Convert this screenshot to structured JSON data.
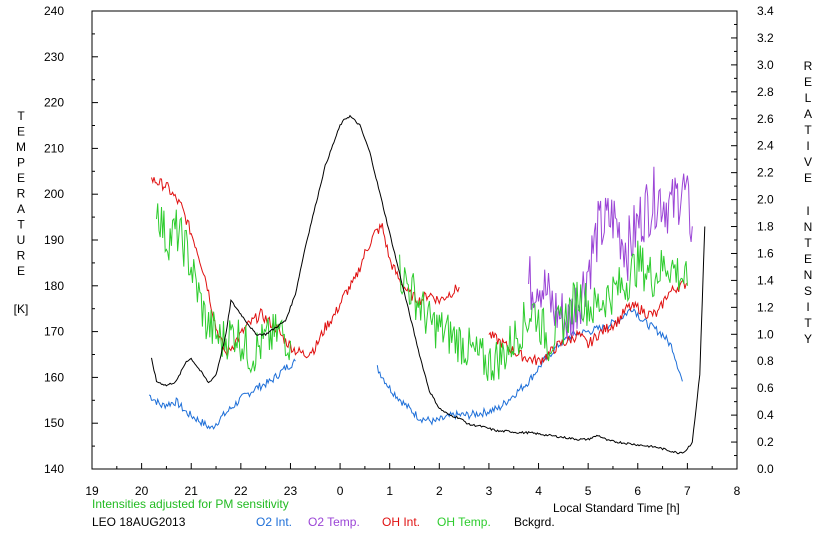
{
  "chart_data": {
    "type": "line",
    "ylabel_letters": [
      "T",
      "E",
      "M",
      "P",
      "E",
      "R",
      "A",
      "T",
      "U",
      "R",
      "E"
    ],
    "ylabel_unit": "[K]",
    "y2label_line1_letters": [
      "R",
      "E",
      "L",
      "A",
      "T",
      "I",
      "V",
      "E"
    ],
    "y2label_line2_letters": [
      "I",
      "N",
      "T",
      "E",
      "N",
      "S",
      "I",
      "T",
      "Y"
    ],
    "xlabel": "Local Standard Time [h]",
    "note": "Intensities adjusted for PM sensitivity",
    "station": "LEO 18AUG2013",
    "x_range": [
      19,
      32
    ],
    "x_tick_labels": [
      "19",
      "20",
      "21",
      "22",
      "23",
      "0",
      "1",
      "2",
      "3",
      "4",
      "5",
      "6",
      "7",
      "8"
    ],
    "ylim": [
      140,
      240
    ],
    "y_ticks": [
      140,
      150,
      160,
      170,
      180,
      190,
      200,
      210,
      220,
      230,
      240
    ],
    "y2lim": [
      0.0,
      3.4
    ],
    "y2_tick_labels": [
      "0.0",
      "0.2",
      "0.4",
      "0.6",
      "0.8",
      "1.0",
      "1.2",
      "1.4",
      "1.6",
      "1.8",
      "2.0",
      "2.2",
      "2.4",
      "2.6",
      "2.8",
      "3.0",
      "3.2",
      "3.4"
    ],
    "grid": false,
    "legend_placement": "bottom",
    "series": [
      {
        "name": "O2 Int.",
        "axis": "right",
        "color": "#1e6fd8",
        "noise": 0.03,
        "segments": [
          [
            [
              20.15,
              0.55
            ],
            [
              20.4,
              0.47
            ],
            [
              20.7,
              0.5
            ],
            [
              20.9,
              0.42
            ],
            [
              21.2,
              0.35
            ],
            [
              21.4,
              0.3
            ],
            [
              21.6,
              0.38
            ],
            [
              21.8,
              0.45
            ],
            [
              22.0,
              0.52
            ],
            [
              22.3,
              0.6
            ],
            [
              22.6,
              0.65
            ],
            [
              22.9,
              0.75
            ],
            [
              23.1,
              0.8
            ]
          ],
          [
            [
              24.75,
              0.75
            ],
            [
              25.0,
              0.6
            ],
            [
              25.3,
              0.48
            ],
            [
              25.6,
              0.38
            ],
            [
              25.9,
              0.35
            ],
            [
              26.3,
              0.4
            ],
            [
              26.6,
              0.4
            ],
            [
              26.9,
              0.42
            ],
            [
              27.2,
              0.45
            ],
            [
              27.5,
              0.55
            ],
            [
              27.8,
              0.65
            ],
            [
              28.1,
              0.8
            ],
            [
              28.4,
              0.92
            ],
            [
              28.7,
              1.0
            ],
            [
              29.0,
              1.02
            ],
            [
              29.3,
              1.05
            ],
            [
              29.6,
              1.1
            ],
            [
              29.9,
              1.2
            ],
            [
              30.1,
              1.1
            ],
            [
              30.3,
              1.05
            ],
            [
              30.5,
              1.0
            ],
            [
              30.7,
              0.9
            ],
            [
              30.9,
              0.65
            ]
          ]
        ]
      },
      {
        "name": "O2 Temp.",
        "axis": "left",
        "color": "#9b45d6",
        "noise": 7,
        "segments": [
          [
            [
              27.8,
              180
            ],
            [
              28.0,
              182
            ],
            [
              28.3,
              175
            ],
            [
              28.6,
              172
            ],
            [
              28.9,
              180
            ],
            [
              29.2,
              192
            ],
            [
              29.5,
              195
            ],
            [
              29.8,
              188
            ],
            [
              30.1,
              196
            ],
            [
              30.4,
              200
            ],
            [
              30.7,
              197
            ],
            [
              30.9,
              202
            ],
            [
              31.1,
              193
            ]
          ]
        ]
      },
      {
        "name": "OH Int.",
        "axis": "right",
        "color": "#e01010",
        "noise": 0.04,
        "segments": [
          [
            [
              20.2,
              2.15
            ],
            [
              20.5,
              2.1
            ],
            [
              20.8,
              1.95
            ],
            [
              21.1,
              1.65
            ],
            [
              21.3,
              1.4
            ],
            [
              21.5,
              1.05
            ],
            [
              21.7,
              0.85
            ],
            [
              21.9,
              0.95
            ],
            [
              22.1,
              1.05
            ],
            [
              22.4,
              1.15
            ],
            [
              22.7,
              1.05
            ],
            [
              22.9,
              0.95
            ],
            [
              23.1,
              0.88
            ],
            [
              23.3,
              0.85
            ],
            [
              23.5,
              0.9
            ],
            [
              23.7,
              1.05
            ],
            [
              23.9,
              1.15
            ],
            [
              24.1,
              1.3
            ],
            [
              24.3,
              1.4
            ],
            [
              24.5,
              1.6
            ],
            [
              24.7,
              1.75
            ],
            [
              24.85,
              1.8
            ],
            [
              25.0,
              1.55
            ],
            [
              25.2,
              1.4
            ],
            [
              25.4,
              1.3
            ],
            [
              25.6,
              1.25
            ],
            [
              25.8,
              1.3
            ],
            [
              26.0,
              1.25
            ],
            [
              26.2,
              1.3
            ],
            [
              26.4,
              1.35
            ]
          ],
          [
            [
              27.0,
              1.0
            ],
            [
              27.2,
              0.95
            ],
            [
              27.4,
              0.9
            ],
            [
              27.6,
              0.85
            ],
            [
              27.8,
              0.82
            ],
            [
              28.0,
              0.8
            ],
            [
              28.2,
              0.85
            ],
            [
              28.4,
              0.92
            ],
            [
              28.6,
              0.95
            ],
            [
              28.8,
              1.0
            ],
            [
              29.0,
              0.92
            ],
            [
              29.2,
              1.0
            ],
            [
              29.4,
              1.05
            ],
            [
              29.6,
              1.1
            ],
            [
              29.8,
              1.2
            ],
            [
              30.0,
              1.2
            ],
            [
              30.2,
              1.15
            ],
            [
              30.4,
              1.15
            ],
            [
              30.6,
              1.3
            ],
            [
              30.8,
              1.35
            ],
            [
              31.0,
              1.38
            ]
          ]
        ]
      },
      {
        "name": "OH Temp.",
        "axis": "left",
        "color": "#2ecc2e",
        "noise": 5,
        "segments": [
          [
            [
              20.3,
              198
            ],
            [
              20.5,
              190
            ],
            [
              20.7,
              192
            ],
            [
              20.9,
              188
            ],
            [
              21.1,
              180
            ],
            [
              21.3,
              172
            ],
            [
              21.6,
              168
            ],
            [
              21.9,
              170
            ],
            [
              22.2,
              165
            ],
            [
              22.5,
              168
            ],
            [
              22.8,
              170
            ],
            [
              23.0,
              168
            ]
          ],
          [
            [
              25.2,
              183
            ],
            [
              25.5,
              178
            ],
            [
              25.8,
              172
            ],
            [
              26.1,
              170
            ],
            [
              26.4,
              168
            ],
            [
              26.7,
              165
            ],
            [
              27.0,
              163
            ],
            [
              27.3,
              165
            ],
            [
              27.6,
              170
            ],
            [
              27.9,
              175
            ],
            [
              28.2,
              168
            ],
            [
              28.5,
              172
            ],
            [
              28.8,
              178
            ],
            [
              29.1,
              175
            ],
            [
              29.4,
              178
            ],
            [
              29.7,
              180
            ],
            [
              30.0,
              185
            ],
            [
              30.3,
              182
            ],
            [
              30.6,
              185
            ],
            [
              30.9,
              182
            ],
            [
              31.0,
              180
            ]
          ]
        ]
      },
      {
        "name": "Bckgrd.",
        "axis": "right",
        "color": "#000000",
        "noise": 0.008,
        "segments": [
          [
            [
              20.2,
              0.82
            ],
            [
              20.3,
              0.65
            ],
            [
              20.5,
              0.62
            ],
            [
              20.7,
              0.65
            ],
            [
              20.9,
              0.8
            ],
            [
              21.0,
              0.82
            ],
            [
              21.2,
              0.72
            ],
            [
              21.35,
              0.64
            ],
            [
              21.5,
              0.7
            ],
            [
              21.7,
              1.0
            ],
            [
              21.8,
              1.25
            ],
            [
              21.9,
              1.2
            ],
            [
              22.1,
              1.1
            ],
            [
              22.3,
              1.0
            ],
            [
              22.5,
              1.0
            ],
            [
              22.7,
              1.05
            ],
            [
              22.9,
              1.1
            ],
            [
              23.1,
              1.3
            ],
            [
              23.3,
              1.65
            ],
            [
              23.5,
              1.95
            ],
            [
              23.7,
              2.25
            ],
            [
              23.9,
              2.45
            ],
            [
              24.0,
              2.55
            ],
            [
              24.1,
              2.6
            ],
            [
              24.2,
              2.62
            ],
            [
              24.4,
              2.55
            ],
            [
              24.6,
              2.35
            ],
            [
              24.8,
              2.05
            ],
            [
              25.0,
              1.75
            ],
            [
              25.2,
              1.45
            ],
            [
              25.4,
              1.15
            ],
            [
              25.6,
              0.85
            ],
            [
              25.8,
              0.58
            ],
            [
              26.0,
              0.45
            ],
            [
              26.2,
              0.4
            ],
            [
              26.4,
              0.38
            ],
            [
              26.6,
              0.33
            ],
            [
              26.8,
              0.32
            ],
            [
              27.0,
              0.3
            ],
            [
              27.2,
              0.28
            ],
            [
              27.4,
              0.28
            ],
            [
              27.6,
              0.27
            ],
            [
              27.8,
              0.27
            ],
            [
              28.0,
              0.26
            ],
            [
              28.2,
              0.25
            ],
            [
              28.4,
              0.24
            ],
            [
              28.6,
              0.23
            ],
            [
              28.8,
              0.22
            ],
            [
              29.0,
              0.22
            ],
            [
              29.2,
              0.25
            ],
            [
              29.4,
              0.21
            ],
            [
              29.6,
              0.2
            ],
            [
              29.8,
              0.19
            ],
            [
              30.0,
              0.18
            ],
            [
              30.2,
              0.17
            ],
            [
              30.4,
              0.16
            ],
            [
              30.6,
              0.14
            ],
            [
              30.8,
              0.12
            ],
            [
              30.95,
              0.13
            ],
            [
              31.1,
              0.2
            ],
            [
              31.25,
              0.7
            ],
            [
              31.35,
              1.8
            ]
          ]
        ]
      }
    ]
  }
}
